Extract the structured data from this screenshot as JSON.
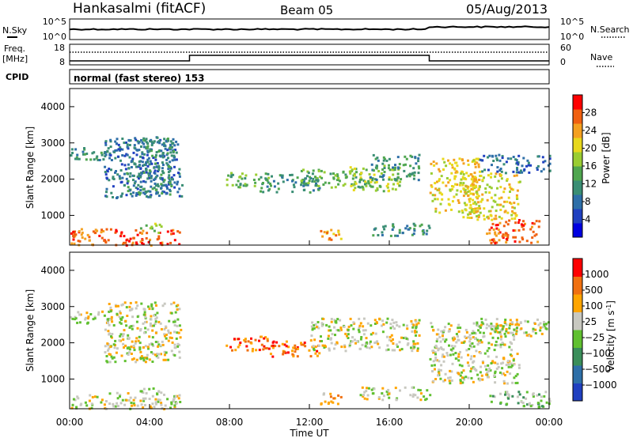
{
  "header": {
    "station": "Hankasalmi (fitACF)",
    "beam": "Beam 05",
    "date": "05/Aug/2013"
  },
  "top_panel": {
    "left_label": "N.Sky",
    "right_label": "N.Search",
    "left_ticks": [
      "10^5",
      "10^0"
    ],
    "right_ticks": [
      "10^5",
      "10^0"
    ]
  },
  "freq_panel": {
    "left_label_line1": "Freq.",
    "left_label_line2": "[MHz]",
    "left_ticks": [
      "18",
      "8"
    ],
    "right_label": "Nave",
    "right_ticks": [
      "60",
      "0"
    ]
  },
  "cpid": {
    "label": "CPID",
    "text": "normal (fast stereo) 153"
  },
  "chart_data": [
    {
      "type": "heatmap",
      "name": "Power",
      "ylabel": "Slant Range [km]",
      "ylim": [
        180,
        4500
      ],
      "y_ticks": [
        "1000",
        "2000",
        "3000",
        "4000"
      ],
      "colorbar_label": "Power [dB]",
      "colorbar_ticks": [
        "28",
        "24",
        "20",
        "16",
        "12",
        "8",
        "4"
      ],
      "colorbar_colors": [
        "#0000e0",
        "#2040c0",
        "#2e6fa8",
        "#3a8e74",
        "#4fa64f",
        "#9acd32",
        "#e8d81c",
        "#f4a020",
        "#f06010",
        "#ff0000"
      ],
      "scatter_regions": [
        {
          "t": [
            0.0,
            2.5
          ],
          "r": [
            2550,
            2900
          ],
          "level": 3
        },
        {
          "t": [
            1.7,
            5.6
          ],
          "r": [
            1500,
            3150
          ],
          "level": 2
        },
        {
          "t": [
            2.8,
            5.2
          ],
          "r": [
            1600,
            3200
          ],
          "level": 3
        },
        {
          "t": [
            7.8,
            10.0
          ],
          "r": [
            1800,
            2200
          ],
          "level": 4
        },
        {
          "t": [
            9.5,
            12.5
          ],
          "r": [
            1650,
            2150
          ],
          "level": 3
        },
        {
          "t": [
            11.5,
            15.0
          ],
          "r": [
            1800,
            2300
          ],
          "level": 4
        },
        {
          "t": [
            14.0,
            16.5
          ],
          "r": [
            1700,
            2400
          ],
          "level": 5
        },
        {
          "t": [
            15.0,
            17.5
          ],
          "r": [
            2000,
            2700
          ],
          "level": 3
        },
        {
          "t": [
            18.0,
            20.5
          ],
          "r": [
            1100,
            2600
          ],
          "level": 6
        },
        {
          "t": [
            19.5,
            22.5
          ],
          "r": [
            900,
            2200
          ],
          "level": 6
        },
        {
          "t": [
            20.5,
            24.0
          ],
          "r": [
            2200,
            2700
          ],
          "level": 2
        },
        {
          "t": [
            20.8,
            23.5
          ],
          "r": [
            250,
            900
          ],
          "level": 8
        },
        {
          "t": [
            0.0,
            5.5
          ],
          "r": [
            200,
            650
          ],
          "level": 8
        },
        {
          "t": [
            15.0,
            18.0
          ],
          "r": [
            450,
            800
          ],
          "level": 3
        },
        {
          "t": [
            3.5,
            4.6
          ],
          "r": [
            550,
            800
          ],
          "level": 5
        },
        {
          "t": [
            12.5,
            13.6
          ],
          "r": [
            300,
            650
          ],
          "level": 7
        }
      ]
    },
    {
      "type": "heatmap",
      "name": "Velocity",
      "ylabel": "Slant Range [km]",
      "ylim": [
        180,
        4500
      ],
      "y_ticks": [
        "1000",
        "2000",
        "3000",
        "4000"
      ],
      "colorbar_label": "Velocity [m s",
      "colorbar_label_sup": "-1",
      "colorbar_label_end": "]",
      "colorbar_ticks": [
        "1000",
        "500",
        "100",
        "25",
        "−25",
        "−100",
        "−500",
        "−1000"
      ],
      "colorbar_colors": [
        "#2040c0",
        "#2e6fa8",
        "#3a8e5a",
        "#60c030",
        "#c8c8c0",
        "#ffa500",
        "#f07010",
        "#ff0000"
      ],
      "scatter_regions": [
        {
          "t": [
            0.0,
            2.5
          ],
          "r": [
            2550,
            2900
          ],
          "level": 4
        },
        {
          "t": [
            1.7,
            5.6
          ],
          "r": [
            1500,
            3150
          ],
          "level": 4
        },
        {
          "t": [
            7.8,
            10.2
          ],
          "r": [
            1800,
            2200
          ],
          "level": 6
        },
        {
          "t": [
            10.0,
            12.5
          ],
          "r": [
            1650,
            2100
          ],
          "level": 6
        },
        {
          "t": [
            12.0,
            17.5
          ],
          "r": [
            1800,
            2700
          ],
          "level": 4
        },
        {
          "t": [
            18.0,
            22.5
          ],
          "r": [
            900,
            2600
          ],
          "level": 4
        },
        {
          "t": [
            20.5,
            24.0
          ],
          "r": [
            2200,
            2700
          ],
          "level": 4
        },
        {
          "t": [
            0.0,
            5.5
          ],
          "r": [
            200,
            650
          ],
          "level": 4
        },
        {
          "t": [
            21.0,
            24.0
          ],
          "r": [
            250,
            700
          ],
          "level": 3
        },
        {
          "t": [
            14.5,
            18.0
          ],
          "r": [
            450,
            800
          ],
          "level": 4
        },
        {
          "t": [
            3.5,
            4.6
          ],
          "r": [
            550,
            800
          ],
          "level": 3
        },
        {
          "t": [
            12.5,
            13.6
          ],
          "r": [
            300,
            650
          ],
          "level": 5
        }
      ]
    }
  ],
  "time_axis": {
    "xlabel": "Time UT",
    "ticks": [
      "00:00",
      "04:00",
      "08:00",
      "12:00",
      "16:00",
      "20:00",
      "00:00"
    ]
  }
}
